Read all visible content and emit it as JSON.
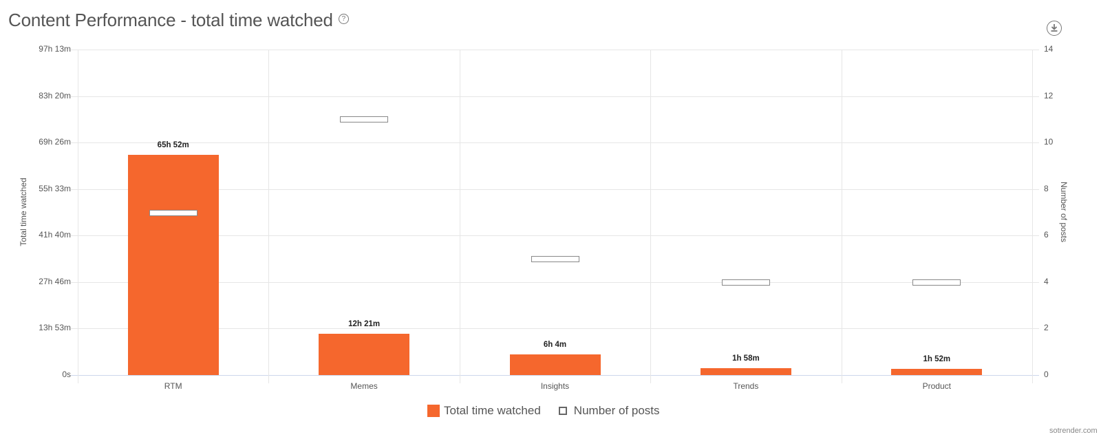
{
  "title": "Content Performance - total time watched",
  "help_icon": "?",
  "download_icon": "download-icon",
  "credit": "sotrender.com",
  "colors": {
    "bar": "#f5672d",
    "marker_border": "#888888",
    "grid": "#e6e6e6",
    "text": "#555555"
  },
  "left_axis": {
    "title": "Total time watched",
    "ticks": [
      "0s",
      "13h 53m",
      "27h 46m",
      "41h 40m",
      "55h 33m",
      "69h 26m",
      "83h 20m",
      "97h 13m"
    ]
  },
  "right_axis": {
    "title": "Number of posts",
    "ticks": [
      "0",
      "2",
      "4",
      "6",
      "8",
      "10",
      "12",
      "14"
    ]
  },
  "legend": {
    "bar_label": "Total time watched",
    "marker_label": "Number of posts"
  },
  "categories": [
    {
      "name": "RTM",
      "time_label": "65h 52m",
      "time_minutes": 3952,
      "posts": 7
    },
    {
      "name": "Memes",
      "time_label": "12h 21m",
      "time_minutes": 741,
      "posts": 11
    },
    {
      "name": "Insights",
      "time_label": "6h 4m",
      "time_minutes": 364,
      "posts": 5
    },
    {
      "name": "Trends",
      "time_label": "1h 58m",
      "time_minutes": 118,
      "posts": 4
    },
    {
      "name": "Product",
      "time_label": "1h 52m",
      "time_minutes": 112,
      "posts": 4
    }
  ],
  "chart_data": {
    "type": "bar",
    "title": "Content Performance - total time watched",
    "categories": [
      "RTM",
      "Memes",
      "Insights",
      "Trends",
      "Product"
    ],
    "series": [
      {
        "name": "Total time watched",
        "axis": "left",
        "kind": "bar",
        "values_minutes": [
          3952,
          741,
          364,
          118,
          112
        ],
        "labels": [
          "65h 52m",
          "12h 21m",
          "6h 4m",
          "1h 58m",
          "1h 52m"
        ]
      },
      {
        "name": "Number of posts",
        "axis": "right",
        "kind": "marker",
        "values": [
          7,
          11,
          5,
          4,
          4
        ]
      }
    ],
    "xlabel": "",
    "ylabel": "Total time watched",
    "ylabel_right": "Number of posts",
    "ylim_left_minutes": [
      0,
      5833
    ],
    "ylim_left_ticks": [
      "0s",
      "13h 53m",
      "27h 46m",
      "41h 40m",
      "55h 33m",
      "69h 26m",
      "83h 20m",
      "97h 13m"
    ],
    "ylim_right": [
      0,
      14
    ],
    "grid": true,
    "legend_position": "bottom-center"
  }
}
